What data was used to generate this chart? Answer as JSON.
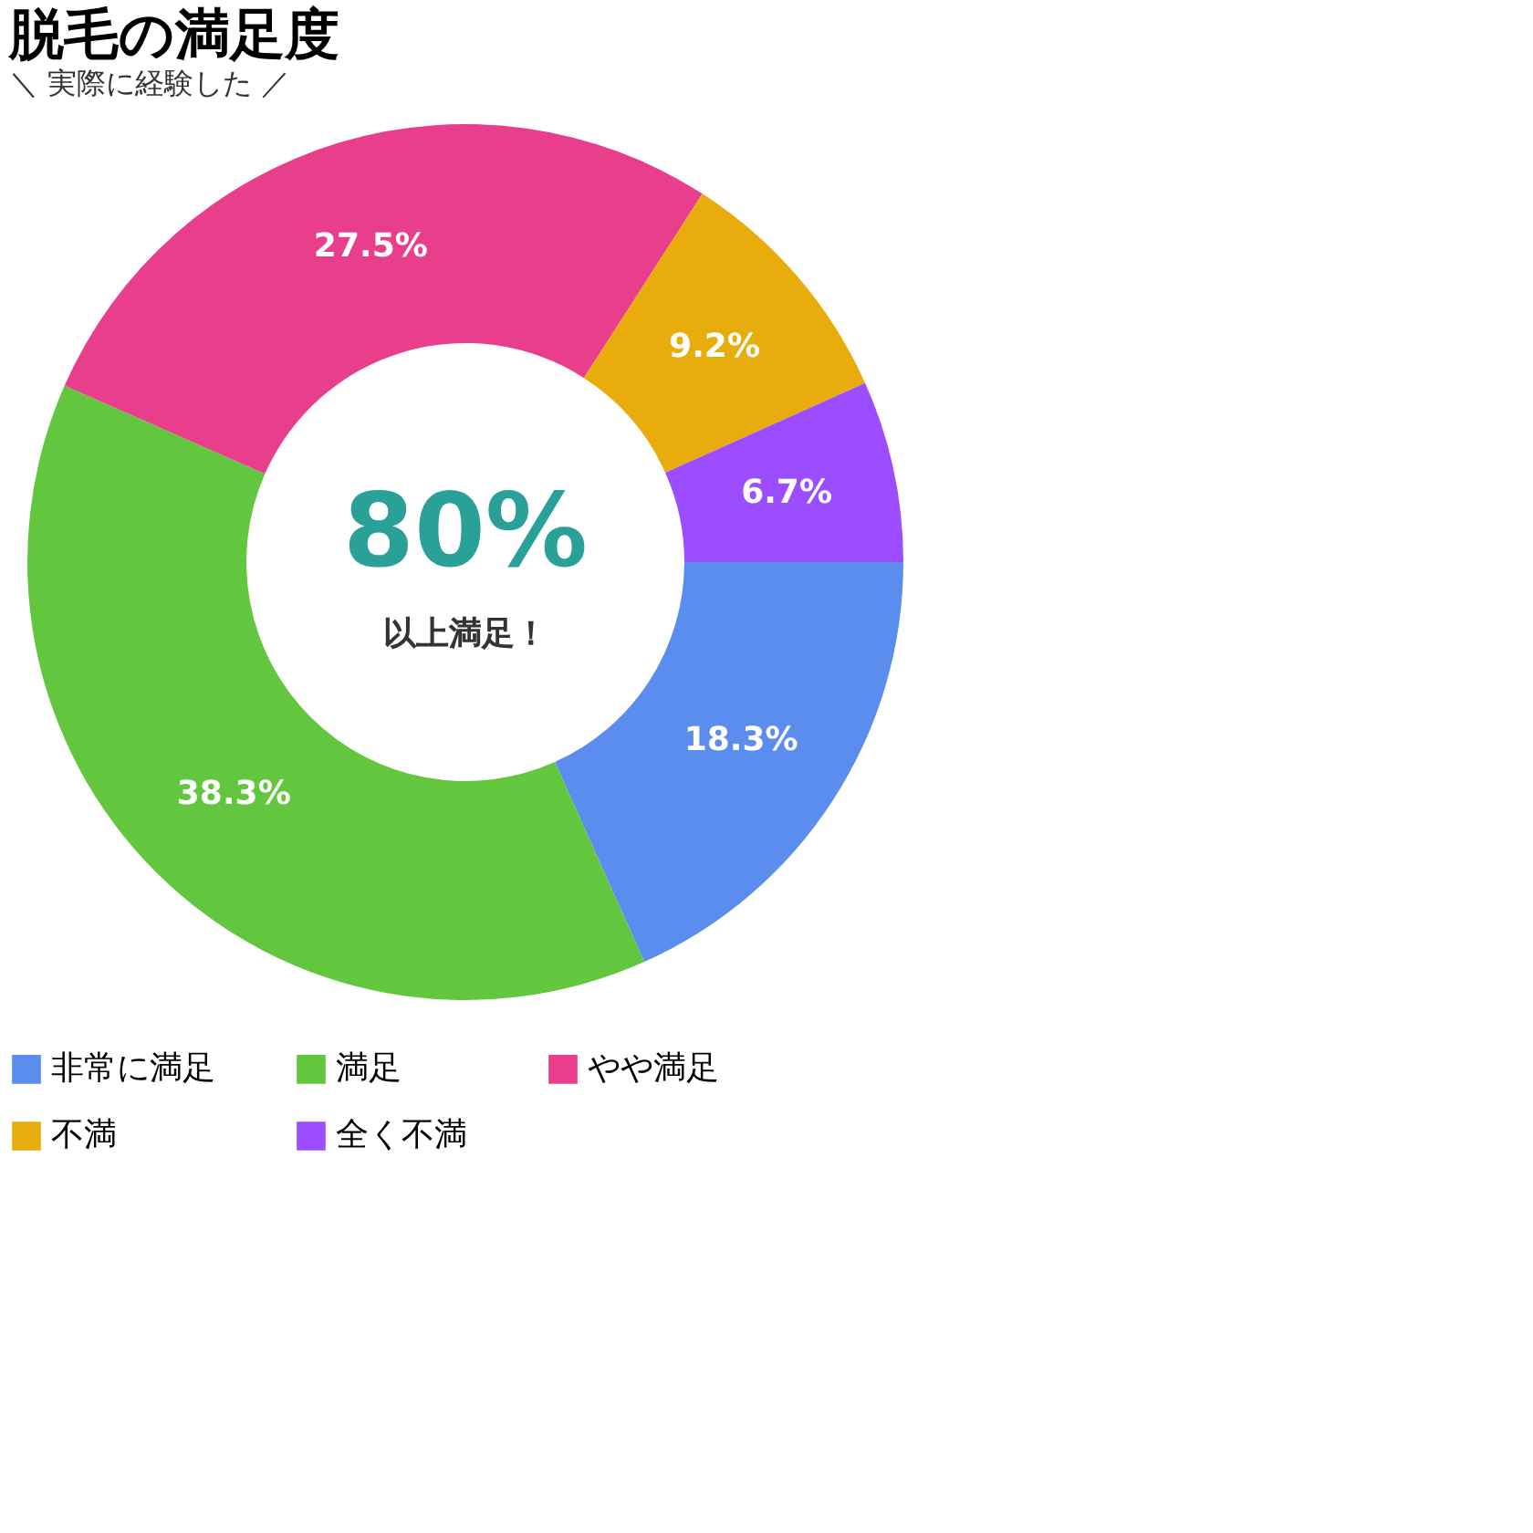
{
  "chart_data": {
    "type": "donut",
    "title": "脱毛の満足度",
    "subtitle": "＼ 実際に経験した ／",
    "categories": [
      "非常に満足",
      "満足",
      "やや満足",
      "不満",
      "全く不満"
    ],
    "values": [
      18.3,
      38.3,
      27.5,
      9.2,
      6.7
    ],
    "colors": [
      "#5b8def",
      "#62c73f",
      "#e83e8c",
      "#e8ad0c",
      "#9b4dff"
    ],
    "value_labels": [
      "18.3%",
      "38.3%",
      "27.5%",
      "9.2%",
      "6.7%"
    ],
    "annotations": [
      "80%",
      "以上満足！"
    ],
    "legend": "bottom"
  }
}
